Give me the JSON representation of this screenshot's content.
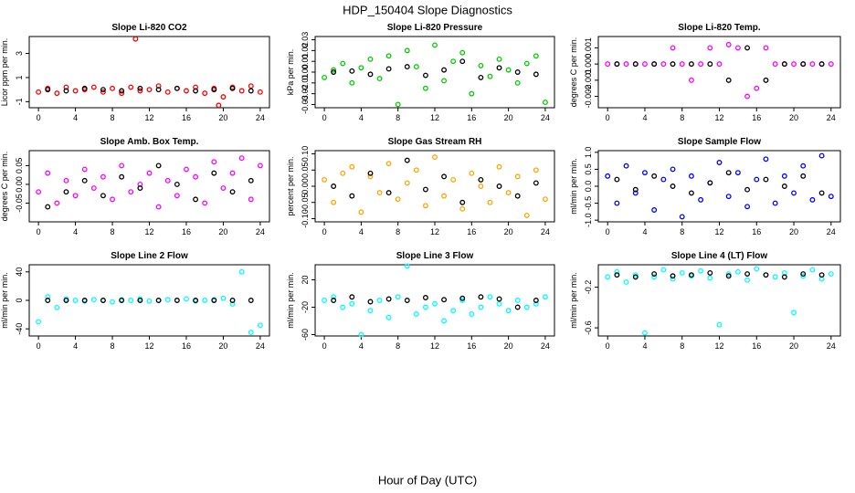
{
  "title": "HDP_150404  Slope Diagnostics",
  "xlabel": "Hour of Day (UTC)",
  "chart_data": [
    {
      "type": "scatter",
      "title": "Slope Li-820 CO2",
      "ylabel": "Licor ppm per min.",
      "xlim": [
        -1,
        25
      ],
      "xticks": [
        0,
        4,
        8,
        12,
        16,
        20,
        24
      ],
      "ylim": [
        -1.5,
        4.4
      ],
      "yticks": [
        -1,
        1,
        3
      ],
      "series": [
        {
          "color": "#ff0000",
          "x": [
            0,
            1,
            2,
            3,
            4,
            5,
            6,
            7,
            8,
            9,
            10,
            10.5,
            11,
            12,
            13,
            14,
            15,
            16,
            17,
            18,
            19,
            19.5,
            20,
            21,
            22,
            23,
            24
          ],
          "values": [
            -0.2,
            0.1,
            -0.3,
            0.2,
            -0.1,
            0.0,
            0.2,
            -0.2,
            0.1,
            -0.3,
            0.2,
            4.2,
            -0.1,
            0.0,
            0.3,
            -0.2,
            0.1,
            -0.1,
            0.2,
            -0.3,
            0.1,
            -1.3,
            -0.6,
            0.2,
            -0.1,
            0.3,
            -0.2
          ]
        },
        {
          "color": "#000000",
          "x": [
            1,
            3,
            5,
            7,
            9,
            11,
            13,
            15,
            17,
            19,
            21,
            23
          ],
          "values": [
            0.0,
            -0.1,
            0.1,
            0.0,
            -0.1,
            0.1,
            0.0,
            0.1,
            -0.1,
            0.0,
            0.1,
            -0.1
          ]
        }
      ]
    },
    {
      "type": "scatter",
      "title": "Slope Li-820 Pressure",
      "ylabel": "kPa per min.",
      "xlim": [
        -1,
        25
      ],
      "xticks": [
        0,
        4,
        8,
        12,
        16,
        20,
        24
      ],
      "ylim": [
        -0.033,
        0.033
      ],
      "yticks": [
        -0.03,
        -0.02,
        -0.01,
        {
          "value": 0,
          "label": "0.00"
        },
        0.01,
        0.02,
        0.03
      ],
      "series": [
        {
          "color": "#00cc00",
          "x": [
            0,
            1,
            2,
            3,
            4,
            5,
            6,
            7,
            8,
            9,
            10,
            11,
            12,
            13,
            14,
            15,
            16,
            17,
            18,
            19,
            20,
            21,
            22,
            23,
            24
          ],
          "values": [
            -0.005,
            0.002,
            0.008,
            -0.01,
            0.004,
            0.012,
            -0.006,
            0.015,
            -0.03,
            0.02,
            0.005,
            -0.015,
            0.025,
            -0.008,
            0.01,
            0.018,
            -0.02,
            0.006,
            -0.004,
            0.012,
            0.002,
            -0.01,
            0.008,
            0.015,
            -0.028
          ]
        },
        {
          "color": "#000000",
          "x": [
            1,
            3,
            5,
            7,
            9,
            11,
            13,
            15,
            17,
            19,
            21,
            23
          ],
          "values": [
            0.0,
            0.001,
            -0.002,
            0.003,
            0.005,
            -0.003,
            0.002,
            0.01,
            -0.005,
            0.004,
            0.0,
            -0.002
          ]
        }
      ]
    },
    {
      "type": "scatter",
      "title": "Slope Li-820 Temp.",
      "ylabel": "degrees C per min.",
      "xlim": [
        -1,
        25
      ],
      "xticks": [
        0,
        4,
        8,
        12,
        16,
        20,
        24
      ],
      "ylim": [
        -0.0027,
        0.0017
      ],
      "yticks": [
        -0.002,
        -0.001,
        {
          "value": 0,
          "label": "0.000"
        },
        0.001
      ],
      "series": [
        {
          "color": "#ff00ff",
          "x": [
            0,
            1,
            2,
            3,
            4,
            5,
            6,
            7,
            8,
            9,
            10,
            11,
            12,
            13,
            14,
            15,
            16,
            17,
            18,
            19,
            20,
            21,
            22,
            23,
            24
          ],
          "values": [
            0,
            0,
            0,
            0,
            0,
            0,
            0,
            0.001,
            0,
            -0.001,
            0,
            0.001,
            0,
            0.0012,
            0.001,
            -0.002,
            -0.0015,
            0.001,
            0,
            0,
            0,
            0,
            0,
            0,
            0
          ]
        },
        {
          "color": "#000000",
          "x": [
            1,
            3,
            5,
            7,
            9,
            11,
            13,
            15,
            17,
            19,
            21,
            23
          ],
          "values": [
            0,
            0,
            0,
            0,
            0,
            0,
            -0.001,
            0.001,
            -0.001,
            0,
            0,
            0
          ]
        }
      ]
    },
    {
      "type": "scatter",
      "title": "Slope Amb. Box Temp.",
      "ylabel": "degrees C per min.",
      "xlim": [
        -1,
        25
      ],
      "xticks": [
        0,
        4,
        8,
        12,
        16,
        20,
        24
      ],
      "ylim": [
        -0.1,
        0.09
      ],
      "yticks": [
        -0.05,
        {
          "value": 0,
          "label": "0.00"
        },
        0.05
      ],
      "series": [
        {
          "color": "#ff00ff",
          "x": [
            0,
            1,
            2,
            3,
            4,
            5,
            6,
            7,
            8,
            9,
            10,
            11,
            12,
            13,
            14,
            15,
            16,
            17,
            18,
            19,
            20,
            21,
            22,
            23,
            24
          ],
          "values": [
            -0.02,
            0.03,
            -0.05,
            0.01,
            -0.03,
            0.04,
            -0.01,
            0.02,
            -0.04,
            0.05,
            -0.02,
            0.0,
            0.03,
            -0.06,
            0.01,
            -0.03,
            0.04,
            0.02,
            -0.05,
            0.06,
            -0.01,
            0.03,
            0.07,
            -0.04,
            0.05
          ]
        },
        {
          "color": "#000000",
          "x": [
            1,
            3,
            5,
            7,
            9,
            11,
            13,
            15,
            17,
            19,
            21,
            23
          ],
          "values": [
            -0.06,
            -0.02,
            0.01,
            -0.03,
            0.02,
            -0.01,
            0.05,
            0.0,
            -0.04,
            0.03,
            -0.02,
            0.01
          ]
        }
      ]
    },
    {
      "type": "scatter",
      "title": "Slope Gas Stream RH",
      "ylabel": "percent per min.",
      "xlim": [
        -1,
        25
      ],
      "xticks": [
        0,
        4,
        8,
        12,
        16,
        20,
        24
      ],
      "ylim": [
        -0.11,
        0.11
      ],
      "yticks": [
        {
          "value": -0.1,
          "label": "-0.10"
        },
        -0.05,
        {
          "value": 0,
          "label": "0.00"
        },
        0.05,
        {
          "value": 0.1,
          "label": "0.10"
        }
      ],
      "series": [
        {
          "color": "#ffa500",
          "x": [
            0,
            1,
            2,
            3,
            4,
            5,
            6,
            7,
            8,
            9,
            10,
            11,
            12,
            13,
            14,
            15,
            16,
            17,
            18,
            19,
            20,
            21,
            22,
            23,
            24
          ],
          "values": [
            0.02,
            -0.05,
            0.04,
            0.06,
            -0.08,
            0.03,
            -0.02,
            0.07,
            -0.04,
            0.01,
            0.05,
            -0.06,
            0.09,
            -0.03,
            0.02,
            -0.07,
            0.04,
            0.0,
            -0.05,
            0.06,
            -0.02,
            0.03,
            -0.09,
            0.05,
            -0.04
          ]
        },
        {
          "color": "#000000",
          "x": [
            1,
            3,
            5,
            7,
            9,
            11,
            13,
            15,
            17,
            19,
            21,
            23
          ],
          "values": [
            0.0,
            -0.03,
            0.04,
            -0.02,
            0.08,
            -0.01,
            0.03,
            -0.05,
            0.02,
            0.0,
            -0.03,
            0.01
          ]
        }
      ]
    },
    {
      "type": "scatter",
      "title": "Slope Sample Flow",
      "ylabel": "ml/min per min.",
      "xlim": [
        -1,
        25
      ],
      "xticks": [
        0,
        4,
        8,
        12,
        16,
        20,
        24
      ],
      "ylim": [
        -1.05,
        1.05
      ],
      "yticks": [
        {
          "value": -1,
          "label": "-1.0"
        },
        -0.5,
        {
          "value": 0,
          "label": "0.0"
        },
        0.5,
        {
          "value": 1,
          "label": "1.0"
        }
      ],
      "series": [
        {
          "color": "#0000ff",
          "x": [
            0,
            1,
            2,
            3,
            4,
            5,
            6,
            7,
            8,
            9,
            10,
            11,
            12,
            13,
            14,
            15,
            16,
            17,
            18,
            19,
            20,
            21,
            22,
            23,
            24
          ],
          "values": [
            0.3,
            -0.5,
            0.6,
            -0.2,
            0.4,
            -0.7,
            0.2,
            0.5,
            -0.9,
            0.3,
            -0.4,
            0.1,
            0.7,
            -0.3,
            0.4,
            -0.6,
            0.2,
            0.8,
            -0.5,
            0.3,
            -0.2,
            0.6,
            -0.4,
            0.9,
            -0.3
          ]
        },
        {
          "color": "#000000",
          "x": [
            1,
            3,
            5,
            7,
            9,
            11,
            13,
            15,
            17,
            19,
            21,
            23
          ],
          "values": [
            0.2,
            -0.1,
            0.3,
            0.0,
            -0.2,
            0.1,
            0.4,
            -0.1,
            0.2,
            0.0,
            0.3,
            -0.2
          ]
        }
      ]
    },
    {
      "type": "scatter",
      "title": "Slope Line 2 Flow",
      "ylabel": "ml/min per min.",
      "xlim": [
        -1,
        25
      ],
      "xticks": [
        0,
        4,
        8,
        12,
        16,
        20,
        24
      ],
      "ylim": [
        -50,
        50
      ],
      "yticks": [
        -40,
        0,
        40
      ],
      "series": [
        {
          "color": "#00ffff",
          "x": [
            0,
            1,
            2,
            3,
            4,
            5,
            6,
            7,
            8,
            9,
            10,
            11,
            12,
            13,
            14,
            15,
            16,
            17,
            18,
            19,
            20,
            21,
            22,
            23,
            24
          ],
          "values": [
            -30,
            5,
            -10,
            2,
            0,
            -1,
            1,
            0,
            -2,
            1,
            0,
            2,
            -1,
            0,
            1,
            0,
            2,
            -1,
            0,
            1,
            3,
            -5,
            40,
            -45,
            -35
          ]
        },
        {
          "color": "#000000",
          "x": [
            1,
            3,
            5,
            7,
            9,
            11,
            13,
            15,
            17,
            19,
            21,
            23
          ],
          "values": [
            0,
            0,
            0,
            0,
            0,
            0,
            0,
            0,
            0,
            0,
            0,
            0
          ]
        }
      ]
    },
    {
      "type": "scatter",
      "title": "Slope Line 3 Flow",
      "ylabel": "ml/min per min.",
      "xlim": [
        -1,
        25
      ],
      "xticks": [
        0,
        4,
        8,
        12,
        16,
        20,
        24
      ],
      "ylim": [
        -62,
        42
      ],
      "yticks": [
        -60,
        -20,
        20
      ],
      "series": [
        {
          "color": "#00ffff",
          "x": [
            0,
            1,
            2,
            3,
            4,
            5,
            6,
            7,
            8,
            9,
            10,
            11,
            12,
            13,
            14,
            15,
            16,
            17,
            18,
            19,
            20,
            21,
            22,
            23,
            24
          ],
          "values": [
            -10,
            -5,
            -20,
            -15,
            -60,
            -25,
            -10,
            -35,
            -5,
            40,
            -30,
            -20,
            -15,
            -40,
            -25,
            -10,
            -30,
            -20,
            -5,
            -15,
            -25,
            -10,
            -20,
            -15,
            -5
          ]
        },
        {
          "color": "#000000",
          "x": [
            1,
            3,
            5,
            7,
            9,
            11,
            13,
            15,
            17,
            19,
            21,
            23
          ],
          "values": [
            -10,
            -5,
            -12,
            -8,
            -10,
            -6,
            -9,
            -7,
            -5,
            -8,
            -20,
            -10
          ]
        }
      ]
    },
    {
      "type": "scatter",
      "title": "Slope Line 4 (LT) Flow",
      "ylabel": "ml/min per min.",
      "xlim": [
        -1,
        25
      ],
      "xticks": [
        0,
        4,
        8,
        12,
        16,
        20,
        24
      ],
      "ylim": [
        -0.68,
        0.02
      ],
      "yticks": [
        -0.6,
        -0.2
      ],
      "series": [
        {
          "color": "#00ffff",
          "x": [
            0,
            1,
            2,
            3,
            4,
            5,
            6,
            7,
            8,
            9,
            10,
            11,
            12,
            13,
            14,
            15,
            16,
            17,
            18,
            19,
            20,
            21,
            22,
            23,
            24
          ],
          "values": [
            -0.1,
            -0.05,
            -0.15,
            -0.08,
            -0.65,
            -0.1,
            -0.03,
            -0.12,
            -0.06,
            -0.09,
            -0.04,
            -0.11,
            -0.57,
            -0.07,
            -0.05,
            -0.13,
            -0.02,
            -0.08,
            -0.1,
            -0.06,
            -0.45,
            -0.09,
            -0.03,
            -0.12,
            -0.07
          ]
        },
        {
          "color": "#000000",
          "x": [
            1,
            3,
            5,
            7,
            9,
            11,
            13,
            15,
            17,
            19,
            21,
            23
          ],
          "values": [
            -0.08,
            -0.1,
            -0.07,
            -0.09,
            -0.08,
            -0.06,
            -0.09,
            -0.07,
            -0.08,
            -0.1,
            -0.07,
            -0.08
          ]
        }
      ]
    }
  ]
}
